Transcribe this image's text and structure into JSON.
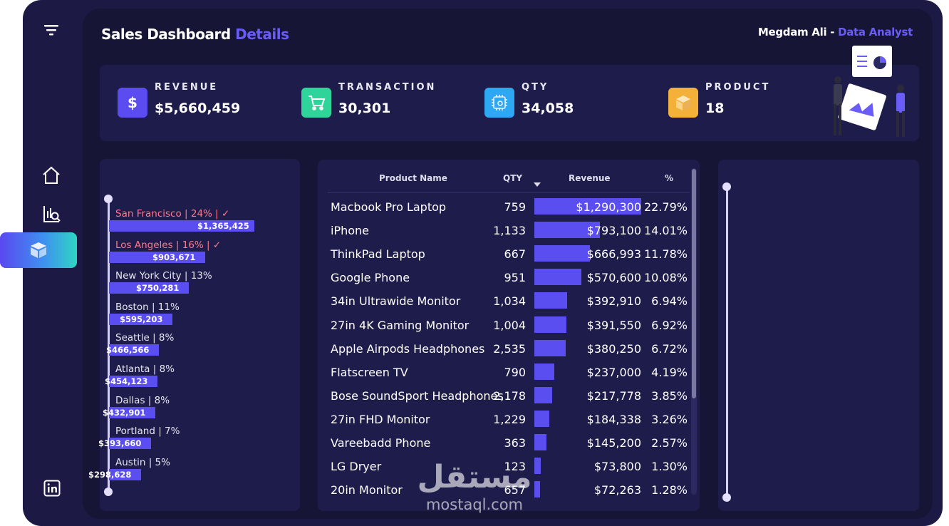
{
  "header": {
    "title": "Sales Dashboard",
    "title_highlight": "Details",
    "author_name": "Megdam Ali -",
    "author_role": "Data Analyst"
  },
  "sidebar": {
    "items": [
      {
        "icon": "filter-icon"
      },
      {
        "icon": "home-icon"
      },
      {
        "icon": "chart-search-icon"
      },
      {
        "icon": "box-icon",
        "active": true
      },
      {
        "icon": "linkedin-icon"
      }
    ]
  },
  "kpis": [
    {
      "label": "REVENUE",
      "value": "$5,660,459",
      "icon": "dollar-icon",
      "color": "#5a4cf0"
    },
    {
      "label": "TRANSACTION",
      "value": "30,301",
      "icon": "cart-icon",
      "color": "#2fd49a"
    },
    {
      "label": "QTY",
      "value": "34,058",
      "icon": "qty-icon",
      "color": "#2fa8f4"
    },
    {
      "label": "PRODUCT",
      "value": "18",
      "icon": "product-box-icon",
      "color": "#f4b13a"
    }
  ],
  "cities": [
    {
      "label": "San Francisco | 24% | ✓",
      "value": "$1,365,425",
      "highlight": true,
      "fraction": 1.0
    },
    {
      "label": "Los Angeles | 16% | ✓",
      "value": "$903,671",
      "highlight": true,
      "fraction": 0.662
    },
    {
      "label": "New York City | 13%",
      "value": "$750,281",
      "highlight": false,
      "fraction": 0.549
    },
    {
      "label": "Boston | 11%",
      "value": "$595,203",
      "highlight": false,
      "fraction": 0.436
    },
    {
      "label": "Seattle | 8%",
      "value": "$466,566",
      "highlight": false,
      "fraction": 0.342
    },
    {
      "label": "Atlanta | 8%",
      "value": "$454,123",
      "highlight": false,
      "fraction": 0.333
    },
    {
      "label": "Dallas | 8%",
      "value": "$432,901",
      "highlight": false,
      "fraction": 0.317
    },
    {
      "label": "Portland | 7%",
      "value": "$393,660",
      "highlight": false,
      "fraction": 0.288
    },
    {
      "label": "Austin | 5%",
      "value": "$298,628",
      "highlight": false,
      "fraction": 0.219
    }
  ],
  "table": {
    "headers": {
      "name": "Product Name",
      "qty": "QTY",
      "revenue": "Revenue",
      "pct": "%"
    },
    "rows": [
      {
        "name": "Macbook Pro Laptop",
        "qty": "759",
        "revenue": "$1,290,300",
        "pct": "22.79%",
        "fraction": 1.0
      },
      {
        "name": "iPhone",
        "qty": "1,133",
        "revenue": "$793,100",
        "pct": "14.01%",
        "fraction": 0.615
      },
      {
        "name": "ThinkPad Laptop",
        "qty": "667",
        "revenue": "$666,993",
        "pct": "11.78%",
        "fraction": 0.517
      },
      {
        "name": "Google Phone",
        "qty": "951",
        "revenue": "$570,600",
        "pct": "10.08%",
        "fraction": 0.442
      },
      {
        "name": "34in Ultrawide Monitor",
        "qty": "1,034",
        "revenue": "$392,910",
        "pct": "6.94%",
        "fraction": 0.305
      },
      {
        "name": "27in 4K Gaming Monitor",
        "qty": "1,004",
        "revenue": "$391,550",
        "pct": "6.92%",
        "fraction": 0.303
      },
      {
        "name": "Apple Airpods Headphones",
        "qty": "2,535",
        "revenue": "$380,250",
        "pct": "6.72%",
        "fraction": 0.295
      },
      {
        "name": "Flatscreen TV",
        "qty": "790",
        "revenue": "$237,000",
        "pct": "4.19%",
        "fraction": 0.184
      },
      {
        "name": "Bose SoundSport Headphones",
        "qty": "2,178",
        "revenue": "$217,778",
        "pct": "3.85%",
        "fraction": 0.169
      },
      {
        "name": "27in FHD Monitor",
        "qty": "1,229",
        "revenue": "$184,338",
        "pct": "3.26%",
        "fraction": 0.143
      },
      {
        "name": "Vareebadd Phone",
        "qty": "363",
        "revenue": "$145,200",
        "pct": "2.57%",
        "fraction": 0.113
      },
      {
        "name": "LG Dryer",
        "qty": "123",
        "revenue": "$73,800",
        "pct": "1.30%",
        "fraction": 0.057
      },
      {
        "name": "20in Monitor",
        "qty": "657",
        "revenue": "$72,263",
        "pct": "1.28%",
        "fraction": 0.056
      }
    ]
  },
  "watermark": {
    "arabic": "مستقل",
    "latin": "mostaql.com"
  },
  "colors": {
    "accent": "#6a5cf6",
    "bar": "#5b4ef0",
    "highlight_text": "#ff7a8a"
  }
}
